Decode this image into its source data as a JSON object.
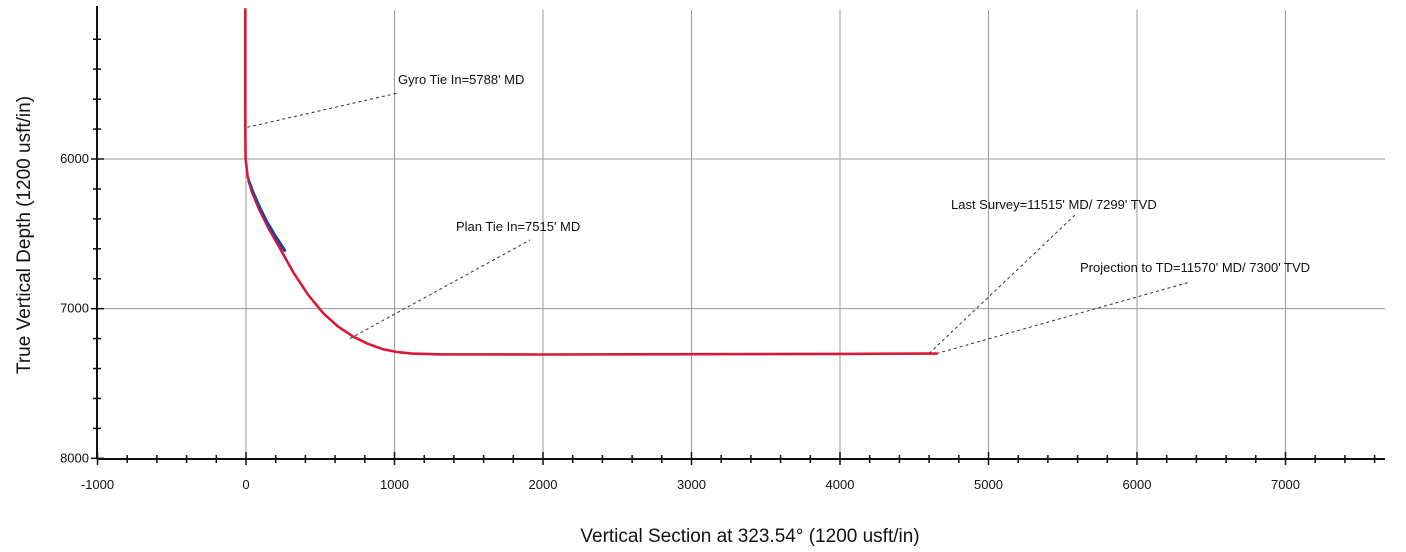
{
  "chart_data": {
    "type": "line",
    "title": "",
    "xlabel": "Vertical Section at 323.54° (1200 usft/in)",
    "ylabel": "True Vertical Depth (1200 usft/in)",
    "xlim": [
      -1000,
      7700
    ],
    "ylim": [
      8000,
      5000
    ],
    "y_inverted": true,
    "grid": true,
    "x_ticks": [
      -1000,
      0,
      1000,
      2000,
      3000,
      4000,
      5000,
      6000,
      7000
    ],
    "y_ticks": [
      6000,
      7000,
      8000
    ],
    "colors": {
      "plan": "#d81a3a",
      "actual": "#2040a0",
      "grid": "#9a9a9a"
    },
    "series": [
      {
        "color": "#d81a3a",
        "x": [
          -5,
          -5,
          -5,
          -3,
          10,
          40,
          90,
          150,
          230,
          320,
          420,
          520,
          620,
          720,
          820,
          920,
          1020,
          1120,
          1300,
          2000,
          3000,
          4000,
          4600,
          4650
        ],
        "y": [
          5000,
          5600,
          5788,
          6000,
          6110,
          6220,
          6340,
          6460,
          6600,
          6760,
          6910,
          7030,
          7120,
          7185,
          7235,
          7270,
          7290,
          7300,
          7305,
          7306,
          7304,
          7302,
          7300,
          7300
        ]
      },
      {
        "color": "#2040a0",
        "x": [
          20,
          50,
          90,
          140,
          200,
          260
        ],
        "y": [
          6150,
          6230,
          6320,
          6420,
          6520,
          6610
        ]
      }
    ],
    "annotations": [
      {
        "text": "Gyro Tie In=5788' MD",
        "x": -5,
        "y": 5788
      },
      {
        "text": "Plan Tie In=7515' MD",
        "x": 700,
        "y": 7200
      },
      {
        "text": "Last Survey=11515' MD/ 7299' TVD",
        "x": 4600,
        "y": 7299
      },
      {
        "text": "Projection to TD=11570' MD/ 7300' TVD",
        "x": 4650,
        "y": 7300
      }
    ]
  }
}
